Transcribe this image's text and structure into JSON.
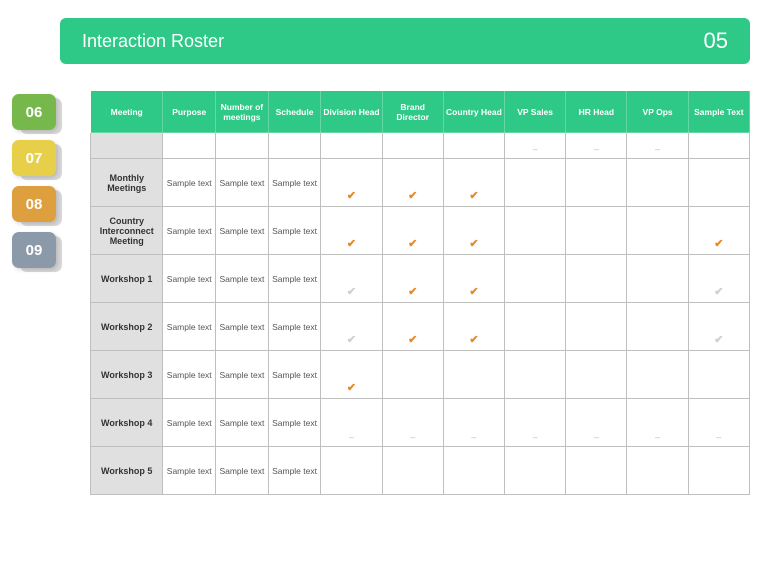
{
  "colors": {
    "header_bg": "#2ec887",
    "tab_06_front": "#76b84b",
    "tab_06_back": "#d8d8d8",
    "tab_07_front": "#e8cf4a",
    "tab_07_back": "#d8d8d8",
    "tab_08_front": "#de9f3f",
    "tab_08_back": "#d8d8d8",
    "tab_09_front": "#8b99a8",
    "tab_09_back": "#d8d8d8",
    "check_color": "#e38b2b"
  },
  "header": {
    "title": "Interaction Roster",
    "page_number": "05"
  },
  "tabs": [
    {
      "label": "06"
    },
    {
      "label": "07"
    },
    {
      "label": "08"
    },
    {
      "label": "09"
    }
  ],
  "table": {
    "columns": [
      "Meeting",
      "Purpose",
      "Number of meetings",
      "Schedule",
      "Division Head",
      "Brand Director",
      "Country Head",
      "VP Sales",
      "HR Head",
      "VP Ops",
      "Sample Text"
    ],
    "rows": [
      {
        "name": "",
        "purpose": "",
        "number": "",
        "schedule": "",
        "marks": [
          "",
          "",
          "",
          "dash",
          "dash",
          "dash",
          ""
        ]
      },
      {
        "name": "Monthly Meetings",
        "purpose": "Sample text",
        "number": "Sample text",
        "schedule": "Sample text",
        "marks": [
          "check",
          "check",
          "check",
          "",
          "",
          "",
          ""
        ]
      },
      {
        "name": "Country Interconnect Meeting",
        "purpose": "Sample text",
        "number": "Sample text",
        "schedule": "Sample text",
        "marks": [
          "check",
          "check",
          "check",
          "",
          "",
          "",
          "check"
        ]
      },
      {
        "name": "Workshop 1",
        "purpose": "Sample text",
        "number": "Sample text",
        "schedule": "Sample text",
        "marks": [
          "graycheck",
          "check",
          "check",
          "",
          "",
          "",
          "graycheck"
        ]
      },
      {
        "name": "Workshop 2",
        "purpose": "Sample text",
        "number": "Sample text",
        "schedule": "Sample text",
        "marks": [
          "graycheck",
          "check",
          "check",
          "",
          "",
          "",
          "graycheck"
        ]
      },
      {
        "name": "Workshop 3",
        "purpose": "Sample text",
        "number": "Sample text",
        "schedule": "Sample text",
        "marks": [
          "check",
          "",
          "",
          "",
          "",
          "",
          ""
        ]
      },
      {
        "name": "Workshop 4",
        "purpose": "Sample text",
        "number": "Sample text",
        "schedule": "Sample text",
        "marks": [
          "dash",
          "dash",
          "dash",
          "dash",
          "dash",
          "dash",
          "dash"
        ]
      },
      {
        "name": "Workshop 5",
        "purpose": "Sample text",
        "number": "Sample text",
        "schedule": "Sample text",
        "marks": [
          "",
          "",
          "",
          "",
          "",
          "",
          ""
        ]
      }
    ]
  }
}
